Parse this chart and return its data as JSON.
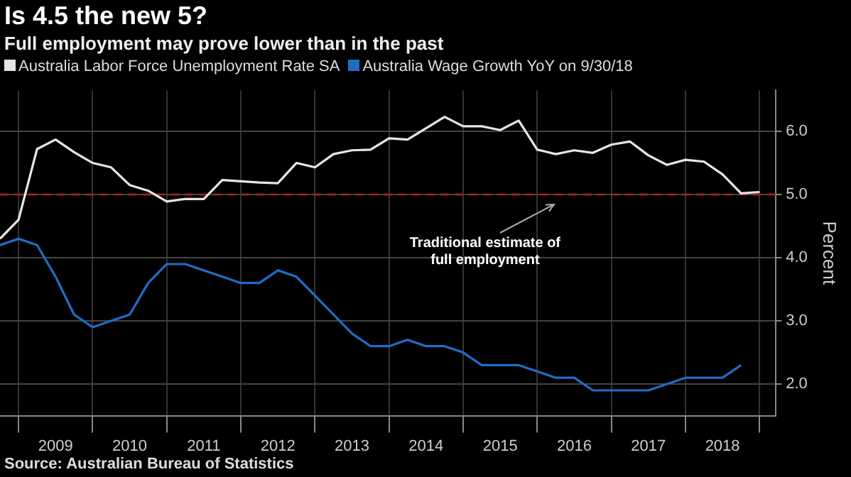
{
  "chart_data": {
    "type": "line",
    "title": "Is 4.5 the new 5?",
    "subtitle": "Full employment may prove lower than in the past",
    "ylabel": "Percent",
    "x": [
      2008.75,
      2009,
      2009.25,
      2009.5,
      2009.75,
      2010,
      2010.25,
      2010.5,
      2010.75,
      2011,
      2011.25,
      2011.5,
      2011.75,
      2012,
      2012.25,
      2012.5,
      2012.75,
      2013,
      2013.25,
      2013.5,
      2013.75,
      2014,
      2014.25,
      2014.5,
      2014.75,
      2015,
      2015.25,
      2015.5,
      2015.75,
      2016,
      2016.25,
      2016.5,
      2016.75,
      2017,
      2017.25,
      2017.5,
      2017.75,
      2018,
      2018.25,
      2018.5,
      2018.75,
      2019
    ],
    "series": [
      {
        "name": "Australia Labor Force Unemployment Rate SA",
        "color": "#e6e6e6",
        "values": [
          4.3,
          4.6,
          5.72,
          5.87,
          5.67,
          5.5,
          5.43,
          5.15,
          5.06,
          4.89,
          4.93,
          4.93,
          5.23,
          5.21,
          5.19,
          5.18,
          5.5,
          5.43,
          5.64,
          5.7,
          5.71,
          5.89,
          5.87,
          6.05,
          6.23,
          6.08,
          6.08,
          6.02,
          6.17,
          5.71,
          5.64,
          5.7,
          5.66,
          5.79,
          5.84,
          5.62,
          5.47,
          5.55,
          5.52,
          5.32,
          5.02,
          5.04
        ]
      },
      {
        "name": "Australia Wage Growth YoY on 9/30/18",
        "color": "#1f6ec4",
        "values": [
          4.2,
          4.3,
          4.2,
          3.7,
          3.1,
          2.9,
          3.0,
          3.1,
          3.6,
          3.9,
          3.9,
          3.8,
          3.7,
          3.6,
          3.6,
          3.8,
          3.7,
          3.4,
          3.1,
          2.8,
          2.6,
          2.6,
          2.7,
          2.6,
          2.6,
          2.5,
          2.3,
          2.3,
          2.3,
          2.2,
          2.1,
          2.1,
          1.9,
          1.9,
          1.9,
          1.9,
          2.0,
          2.1,
          2.1,
          2.1,
          2.3,
          null
        ]
      }
    ],
    "xlim": [
      2008.75,
      2019.22
    ],
    "xticks": [
      {
        "value": 2009,
        "label": null
      },
      {
        "value": 2009.5,
        "label": "2009"
      },
      {
        "value": 2010,
        "label": null
      },
      {
        "value": 2010.5,
        "label": "2010"
      },
      {
        "value": 2011,
        "label": null
      },
      {
        "value": 2011.5,
        "label": "2011"
      },
      {
        "value": 2012,
        "label": null
      },
      {
        "value": 2012.5,
        "label": "2012"
      },
      {
        "value": 2013,
        "label": null
      },
      {
        "value": 2013.5,
        "label": "2013"
      },
      {
        "value": 2014,
        "label": null
      },
      {
        "value": 2014.5,
        "label": "2014"
      },
      {
        "value": 2015,
        "label": null
      },
      {
        "value": 2015.5,
        "label": "2015"
      },
      {
        "value": 2016,
        "label": null
      },
      {
        "value": 2016.5,
        "label": "2016"
      },
      {
        "value": 2017,
        "label": null
      },
      {
        "value": 2017.5,
        "label": "2017"
      },
      {
        "value": 2018,
        "label": null
      },
      {
        "value": 2018.5,
        "label": "2018"
      },
      {
        "value": 2019,
        "label": null
      }
    ],
    "ylim": [
      1.5,
      6.65
    ],
    "yticks": [
      {
        "value": 2,
        "label": "2.0"
      },
      {
        "value": 3,
        "label": "3.0"
      },
      {
        "value": 4,
        "label": "4.0"
      },
      {
        "value": 5,
        "label": "5.0"
      },
      {
        "value": 6,
        "label": "6.0"
      }
    ],
    "ref_lines": [
      {
        "axis": "y",
        "value": 5,
        "color": "#b3202a",
        "line_style": "dashed"
      }
    ],
    "annotations": [
      "Traditional estimate of full employment",
      "Source: Australian Bureau of Statistics"
    ],
    "grid": true,
    "legend": "top left",
    "marker": "none",
    "line_style": "solid"
  }
}
